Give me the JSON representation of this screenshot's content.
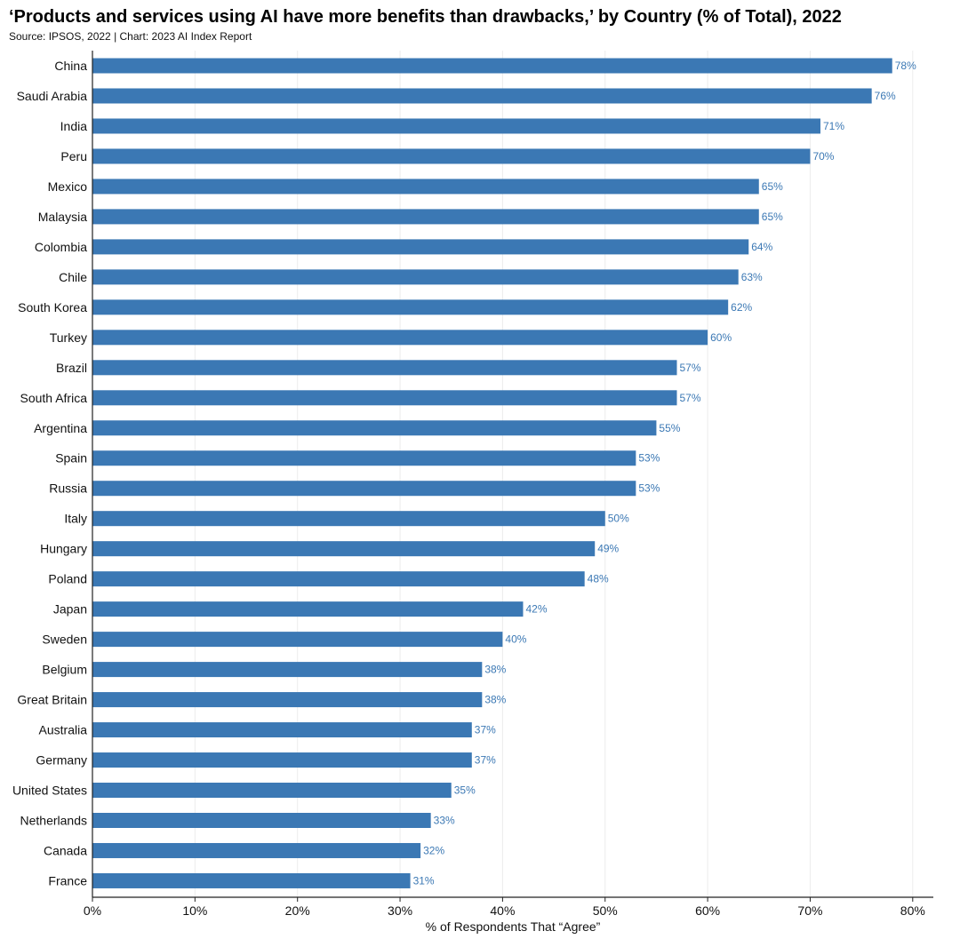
{
  "chart_data": {
    "type": "bar",
    "orientation": "horizontal",
    "title": "‘Products and services using AI have more benefits than drawbacks,’ by Country (% of Total), 2022",
    "subtitle": "Source: IPSOS, 2022 | Chart: 2023 AI Index Report",
    "xlabel": "% of Respondents That “Agree”",
    "ylabel": "",
    "xlim": [
      0,
      82
    ],
    "x_ticks": [
      0,
      10,
      20,
      30,
      40,
      50,
      60,
      70,
      80
    ],
    "x_tick_labels": [
      "0%",
      "10%",
      "20%",
      "30%",
      "40%",
      "50%",
      "60%",
      "70%",
      "80%"
    ],
    "grid": "vertical",
    "bar_color": "#3b78b4",
    "categories": [
      "China",
      "Saudi Arabia",
      "India",
      "Peru",
      "Mexico",
      "Malaysia",
      "Colombia",
      "Chile",
      "South Korea",
      "Turkey",
      "Brazil",
      "South Africa",
      "Argentina",
      "Spain",
      "Russia",
      "Italy",
      "Hungary",
      "Poland",
      "Japan",
      "Sweden",
      "Belgium",
      "Great Britain",
      "Australia",
      "Germany",
      "United States",
      "Netherlands",
      "Canada",
      "France"
    ],
    "values": [
      78,
      76,
      71,
      70,
      65,
      65,
      64,
      63,
      62,
      60,
      57,
      57,
      55,
      53,
      53,
      50,
      49,
      48,
      42,
      40,
      38,
      38,
      37,
      37,
      35,
      33,
      32,
      31
    ],
    "value_labels": [
      "78%",
      "76%",
      "71%",
      "70%",
      "65%",
      "65%",
      "64%",
      "63%",
      "62%",
      "60%",
      "57%",
      "57%",
      "55%",
      "53%",
      "53%",
      "50%",
      "49%",
      "48%",
      "42%",
      "40%",
      "38%",
      "38%",
      "37%",
      "37%",
      "35%",
      "33%",
      "32%",
      "31%"
    ]
  }
}
